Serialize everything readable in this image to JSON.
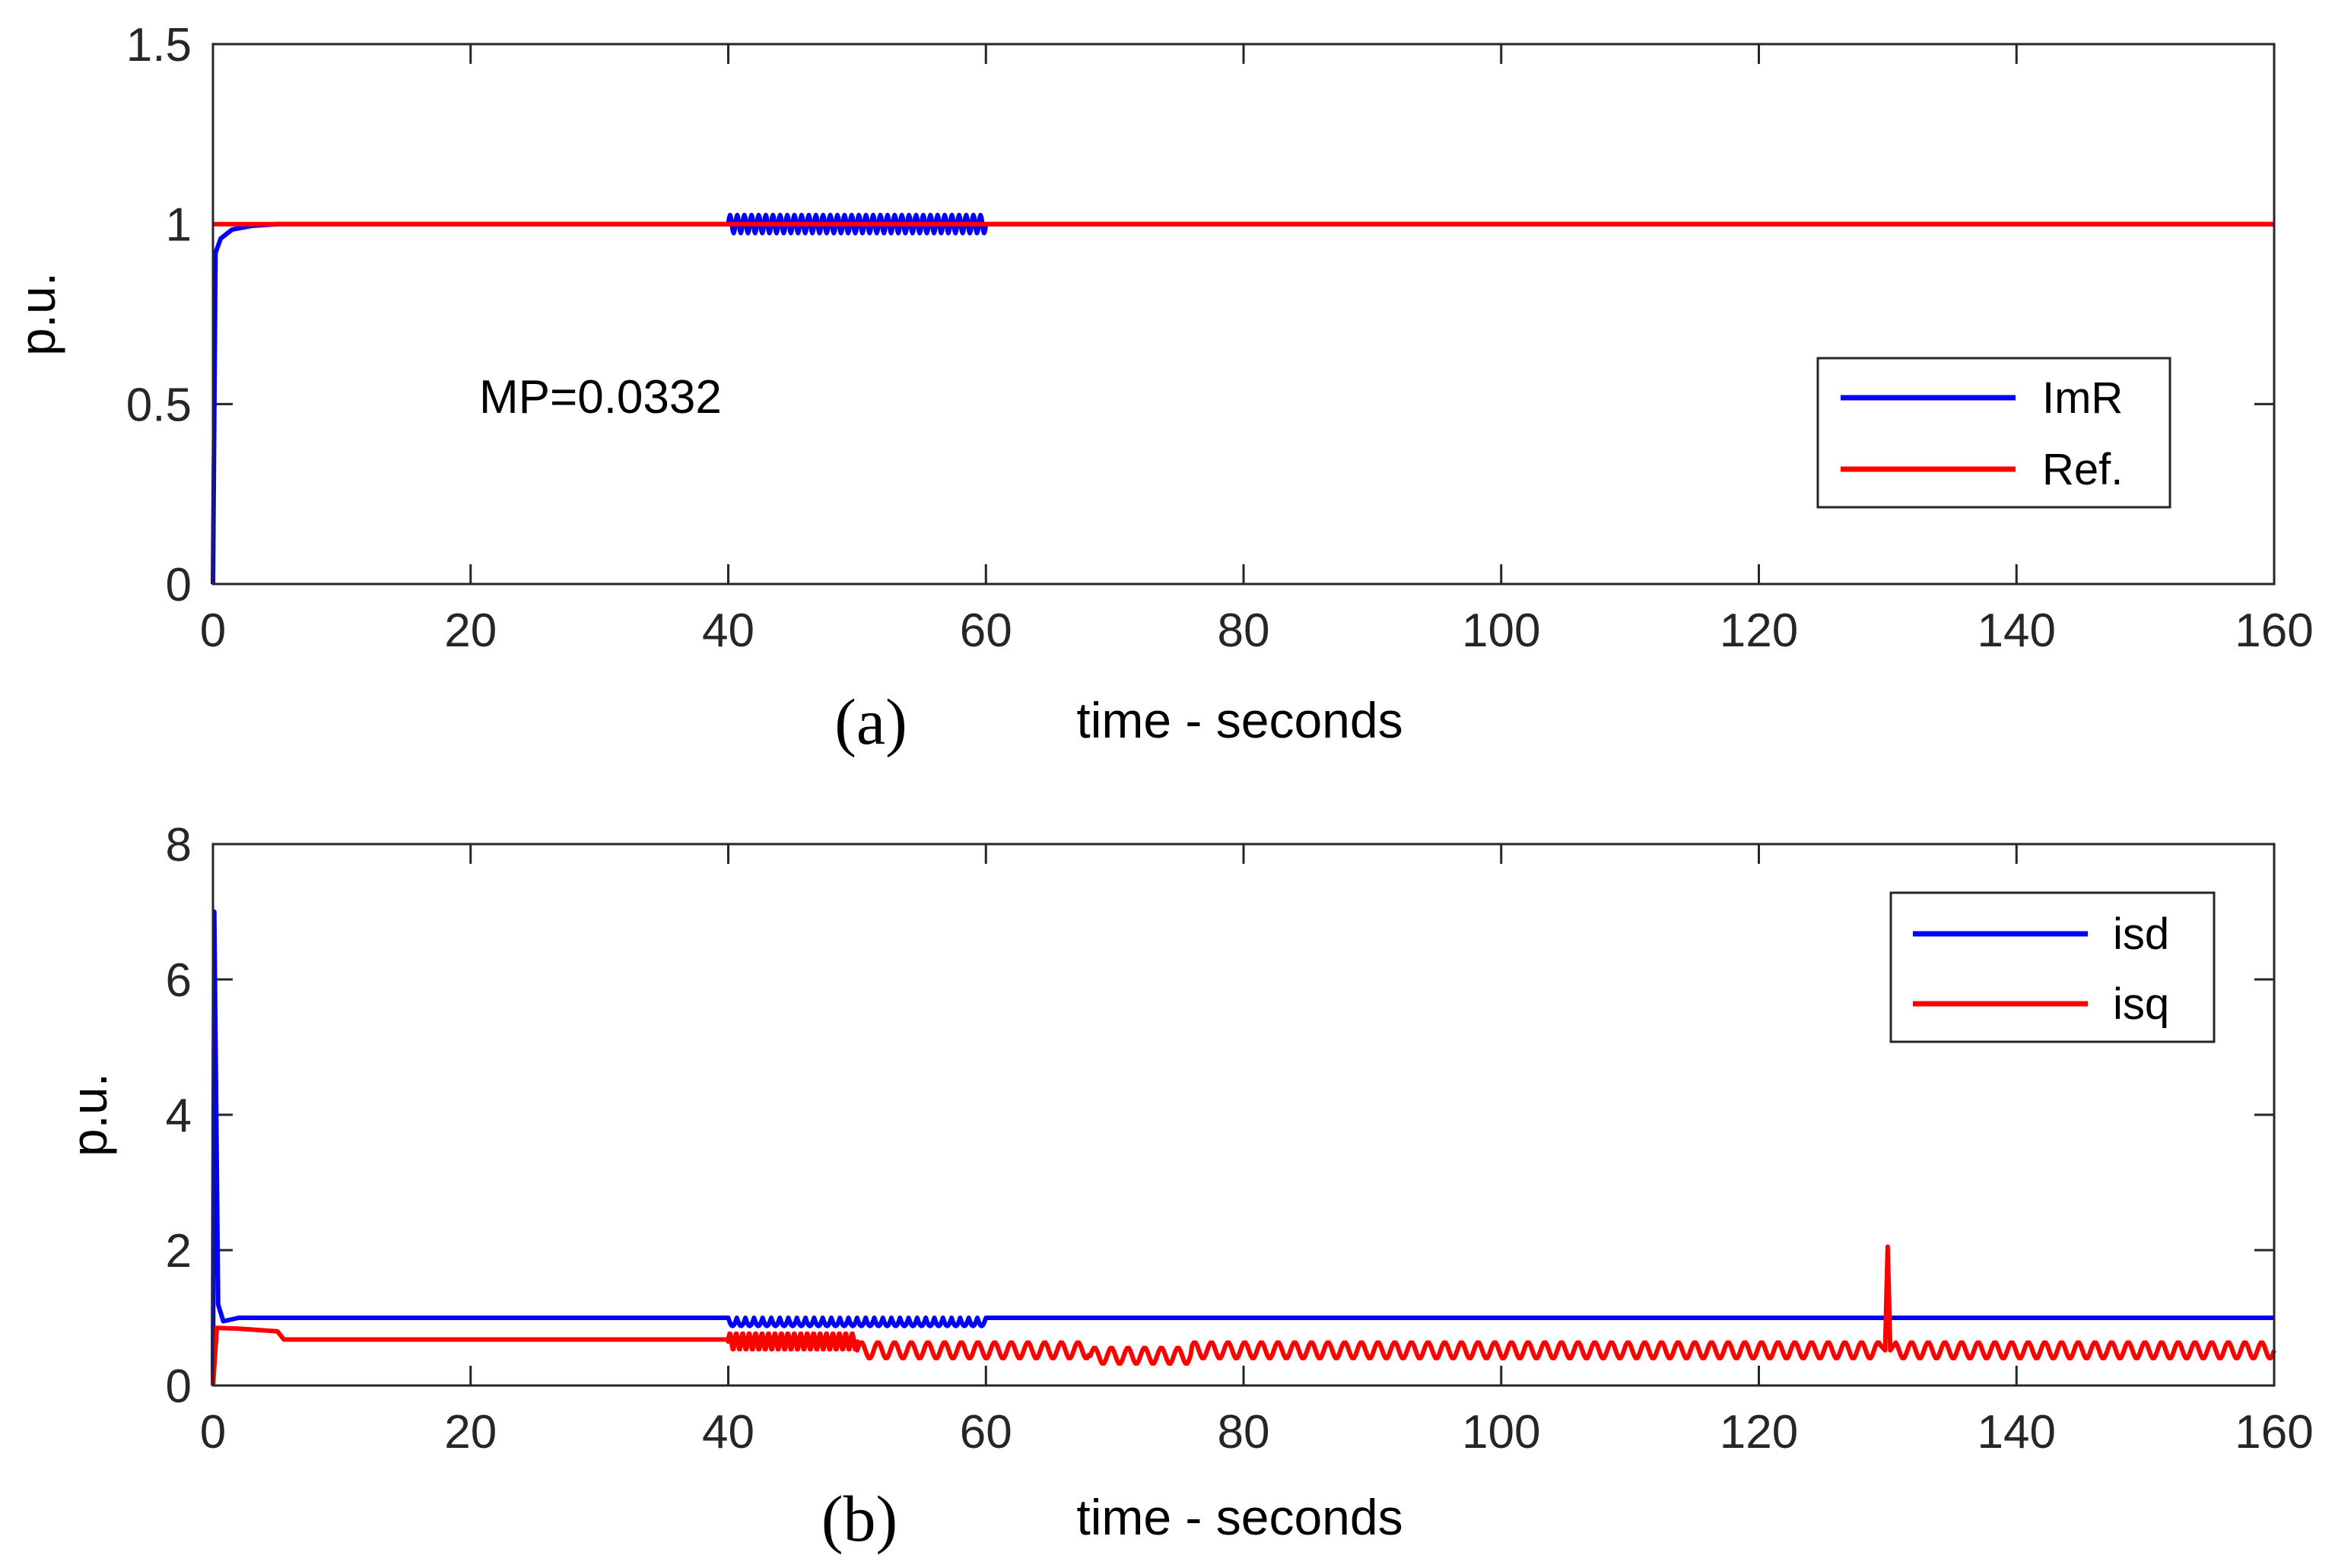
{
  "chart_data": [
    {
      "type": "line",
      "panel": "(a)",
      "xlabel": "time - seconds",
      "ylabel": "p.u.",
      "xlim": [
        0,
        160
      ],
      "ylim": [
        0,
        1.5
      ],
      "xticks": [
        "0",
        "20",
        "40",
        "60",
        "80",
        "100",
        "120",
        "140",
        "160"
      ],
      "yticks": [
        "0",
        "0.5",
        "1",
        "1.5"
      ],
      "annotation": "MP=0.0332",
      "legend_position": "right",
      "series": [
        {
          "name": "ImR",
          "color": "#0000ff",
          "description": "Rises from 0 to ~1 within ~1 s, then stays at 1; small oscillation (±0.02) between t=40 and t=60",
          "points": [
            [
              0,
              0
            ],
            [
              0.2,
              0.92
            ],
            [
              0.6,
              0.96
            ],
            [
              1.5,
              0.985
            ],
            [
              3,
              0.995
            ],
            [
              5,
              1.0
            ],
            [
              40,
              1.0
            ],
            [
              60,
              1.0
            ],
            [
              160,
              1.0
            ]
          ],
          "oscillation": {
            "from": 40,
            "to": 60,
            "amplitude": 0.025,
            "cycles": 36
          }
        },
        {
          "name": "Ref.",
          "color": "#ff0000",
          "description": "Constant reference at 1.0",
          "points": [
            [
              0,
              1.0
            ],
            [
              160,
              1.0
            ]
          ]
        }
      ]
    },
    {
      "type": "line",
      "panel": "(b)",
      "xlabel": "time - seconds",
      "ylabel": "p.u.",
      "xlim": [
        0,
        160
      ],
      "ylim": [
        0,
        8
      ],
      "xticks": [
        "0",
        "20",
        "40",
        "60",
        "80",
        "100",
        "120",
        "140",
        "160"
      ],
      "yticks": [
        "0",
        "2",
        "4",
        "6",
        "8"
      ],
      "legend_position": "top-right",
      "series": [
        {
          "name": "isd",
          "color": "#0000ff",
          "description": "Spike to ~7 at t=0, settles to ~1; small oscillation between t=40 and t=60",
          "points": [
            [
              0,
              0
            ],
            [
              0.1,
              7.0
            ],
            [
              0.4,
              1.2
            ],
            [
              0.8,
              0.95
            ],
            [
              2,
              1.0
            ],
            [
              40,
              1.0
            ],
            [
              60,
              1.0
            ],
            [
              160,
              1.0
            ]
          ],
          "oscillation": {
            "from": 40,
            "to": 60,
            "amplitude": 0.12,
            "cycles": 30
          }
        },
        {
          "name": "isq",
          "color": "#ff0000",
          "description": "Rises to ~0.85, drops to ~0.68 at t=5, stays until t=40; oscillates ~0.5–0.75 afterwards; spike to ~2.05 at t=130",
          "points": [
            [
              0,
              0
            ],
            [
              0.3,
              0.85
            ],
            [
              5,
              0.8
            ],
            [
              5.5,
              0.68
            ],
            [
              40,
              0.68
            ],
            [
              50,
              0.6
            ],
            [
              60,
              0.5
            ],
            [
              130,
              2.05
            ],
            [
              160,
              0.6
            ]
          ],
          "segments": [
            {
              "from": 40,
              "to": 50,
              "center": 0.65,
              "amplitude": 0.12,
              "cycles": 20
            },
            {
              "from": 50,
              "to": 160,
              "center": 0.52,
              "amplitude": 0.12,
              "cycles": 85
            }
          ],
          "spike": {
            "t": 130,
            "value": 2.05
          }
        }
      ]
    }
  ]
}
